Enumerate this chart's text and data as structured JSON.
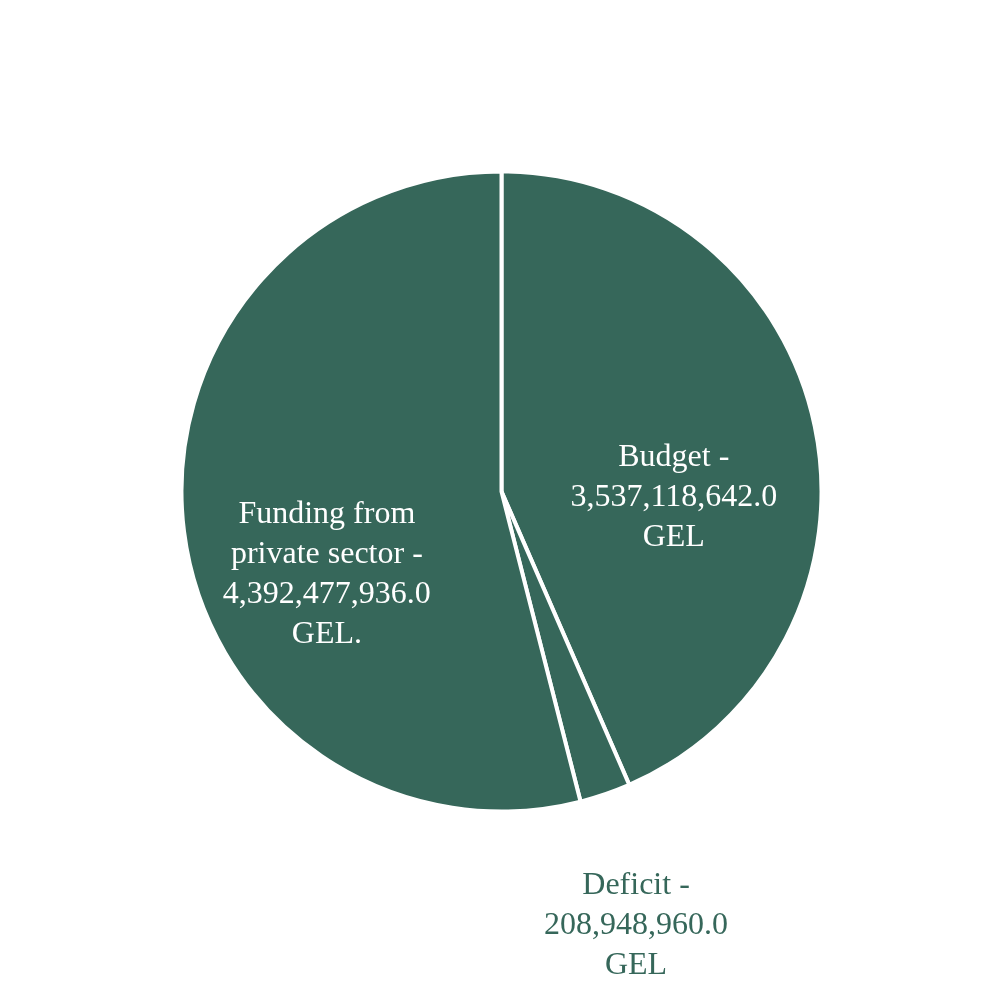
{
  "chart_data": {
    "type": "pie",
    "categories": [
      "Budget -",
      "Deficit -",
      "Funding from private sector -"
    ],
    "values": [
      3537118642.0,
      208948960.0,
      4392477936.0
    ],
    "value_labels": [
      "3,537,118,642.0 GEL",
      "208,948,960.0 GEL",
      "4,392,477,936.0 GEL."
    ],
    "colors": [
      "#36675a",
      "#36675a",
      "#36675a"
    ]
  }
}
